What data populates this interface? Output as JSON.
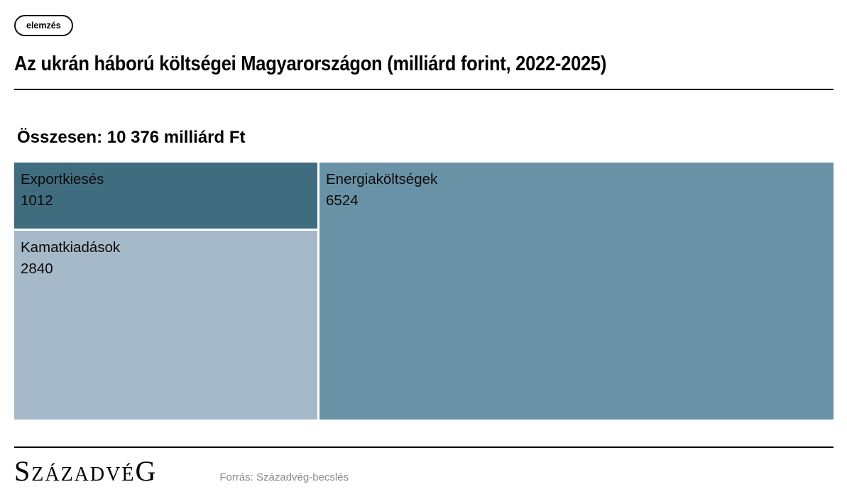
{
  "badge": {
    "label": "elemzés"
  },
  "header": {
    "title": "Az ukrán háború költségei Magyarországon (milliárd forint, 2022-2025)"
  },
  "summary": {
    "label": "Összesen: 10 376 milliárd Ft"
  },
  "treemap": {
    "cells": [
      {
        "name": "Exportkiesés",
        "value": "1012",
        "color": "#406c80"
      },
      {
        "name": "Kamatkiadások",
        "value": "2840",
        "color": "#a6b9c8"
      },
      {
        "name": "Energiaköltségek",
        "value": "6524",
        "color": "#6a92a6"
      }
    ]
  },
  "footer": {
    "logo": {
      "first": "S",
      "mid": "ZÁZADVÉ",
      "last": "G"
    },
    "source": "Forrás: Századvég-becslés"
  },
  "chart_data": {
    "type": "treemap",
    "title": "Az ukrán háború költségei Magyarországon (milliárd forint, 2022-2025)",
    "subtitle": "Összesen: 10 376 milliárd Ft",
    "categories": [
      "Energiaköltségek",
      "Kamatkiadások",
      "Exportkiesés"
    ],
    "values": [
      6524,
      2840,
      1012
    ],
    "total": 10376,
    "unit": "milliárd forint",
    "period": "2022-2025",
    "colors": [
      "#6a92a6",
      "#a6b9c8",
      "#406c80"
    ],
    "legend_position": "none",
    "labels_inside_cells": true
  }
}
